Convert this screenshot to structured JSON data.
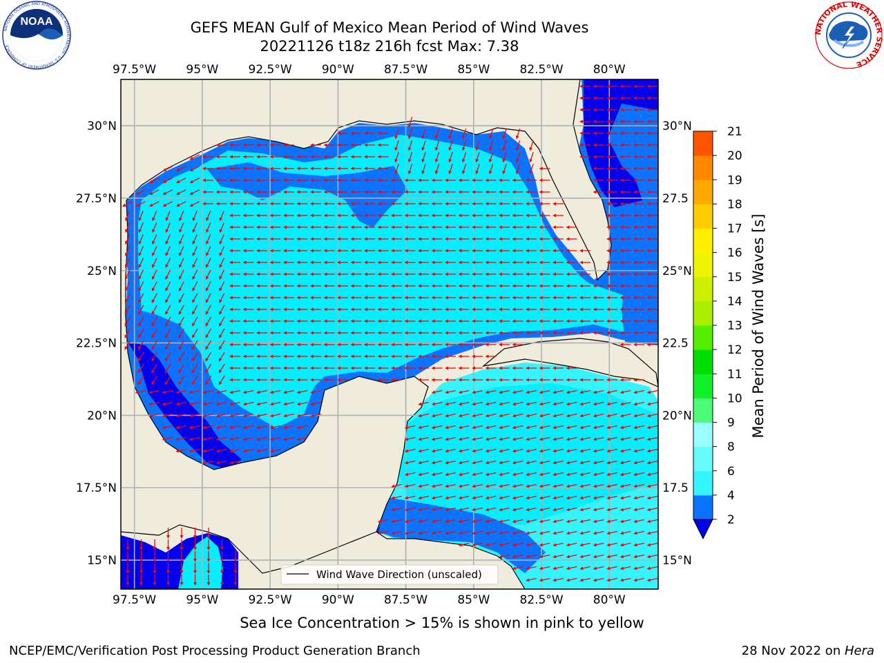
{
  "title": {
    "line1": "GEFS MEAN Gulf of Mexico Mean Period of Wind Waves",
    "line2": "20221126 t18z 216h fcst   Max: 7.38"
  },
  "logos": {
    "left": {
      "icon": "noaa-logo-icon",
      "text": "NOAA",
      "ring_text": "NATIONAL OCEANIC AND ATMOSPHERIC ADMINISTRATION · U.S. DEPARTMENT OF COMMERCE"
    },
    "right": {
      "icon": "nws-logo-icon",
      "ring_text": "NATIONAL WEATHER SERVICE"
    }
  },
  "map": {
    "lon_ticks": [
      "97.5°W",
      "95°W",
      "92.5°W",
      "90°W",
      "87.5°W",
      "85°W",
      "82.5°W",
      "80°W"
    ],
    "lat_ticks_left": [
      "30°N",
      "27.5°N",
      "25°N",
      "22.5°N",
      "20°N",
      "17.5°N",
      "15°N"
    ],
    "lat_ticks_right": [
      "30°N",
      "27.5",
      "25°N",
      "22.5",
      "20°N",
      "17.5",
      "15°N"
    ],
    "lon_range": [
      -98,
      -78.2
    ],
    "lat_range": [
      14,
      31.6
    ],
    "land_color": "#efecdc",
    "grid": true,
    "legend": {
      "text": "Wind Wave Direction (unscaled)",
      "position": "bottom-center"
    },
    "arrow_color": "#ff0000"
  },
  "colorbar": {
    "label": "Mean Period of Wind Waves [s]",
    "ticks": [
      "2",
      "4",
      "6",
      "8",
      "9",
      "10",
      "11",
      "12",
      "13",
      "14",
      "15",
      "16",
      "17",
      "18",
      "19",
      "20",
      "21"
    ],
    "colors": [
      "#0a73ff",
      "#00e8ff",
      "#33f5ff",
      "#66fbff",
      "#99ffff",
      "#4dfb7a",
      "#11ef2a",
      "#00dd00",
      "#55ee00",
      "#aaee00",
      "#ccf000",
      "#eef400",
      "#ffee00",
      "#ffcc00",
      "#ffaa00",
      "#ff8800",
      "#ff5500",
      "#ff2a00",
      "#ff0000"
    ],
    "extend_color": "#0000ee"
  },
  "subcaption": "Sea Ice Concentration > 15% is shown in pink to yellow",
  "footer": {
    "left": "NCEP/EMC/Verification Post Processing Product Generation Branch",
    "right_prefix": "28 Nov 2022 on ",
    "right_host": "Hera"
  }
}
